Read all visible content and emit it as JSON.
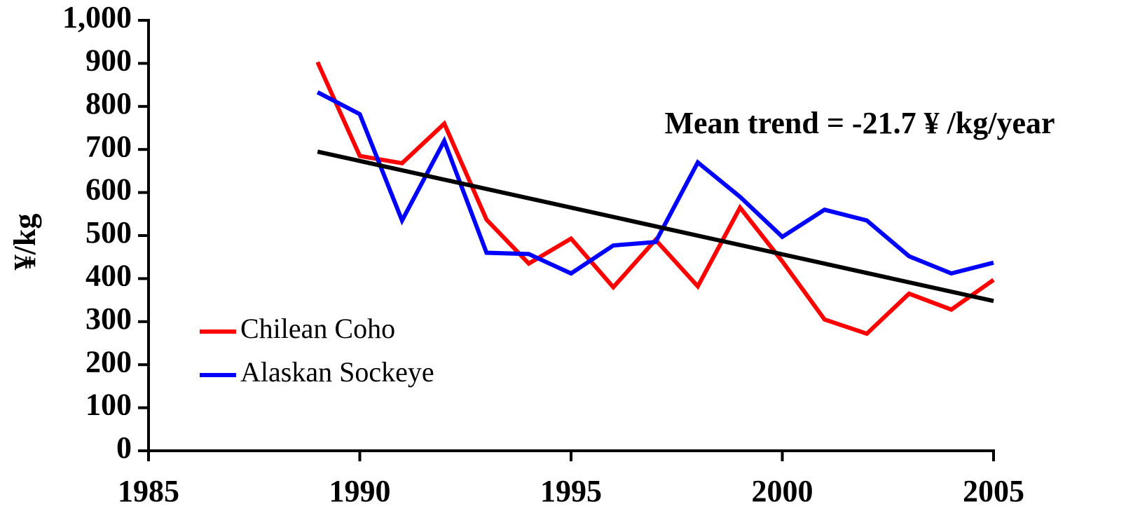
{
  "chart_data": {
    "type": "line",
    "y_label": "¥/kg",
    "annotation": "Mean trend = -21.7 ¥ /kg/year",
    "x": [
      1989,
      1990,
      1991,
      1992,
      1993,
      1994,
      1995,
      1996,
      1997,
      1998,
      1999,
      2000,
      2001,
      2002,
      2003,
      2004,
      2005
    ],
    "series": [
      {
        "name": "Chilean Coho",
        "color": "#ff0000",
        "values": [
          903,
          685,
          668,
          760,
          537,
          435,
          493,
          380,
          490,
          382,
          565,
          440,
          305,
          272,
          365,
          328,
          397
        ]
      },
      {
        "name": "Alaskan Sockeye",
        "color": "#0000ff",
        "values": [
          833,
          782,
          535,
          720,
          460,
          457,
          412,
          477,
          485,
          670,
          590,
          497,
          560,
          535,
          452,
          412,
          437
        ]
      }
    ],
    "trend": {
      "x": [
        1989,
        2005
      ],
      "values": [
        695,
        348
      ],
      "color": "#000000"
    },
    "xlim": [
      1985,
      2005
    ],
    "xticks": [
      1985,
      1990,
      1995,
      2000,
      2005
    ],
    "ylim": [
      0,
      1000
    ],
    "yticks": [
      0,
      100,
      200,
      300,
      400,
      500,
      600,
      700,
      800,
      900,
      {
        "value": 1000,
        "label": "1,000"
      }
    ],
    "legend": "lower left"
  }
}
